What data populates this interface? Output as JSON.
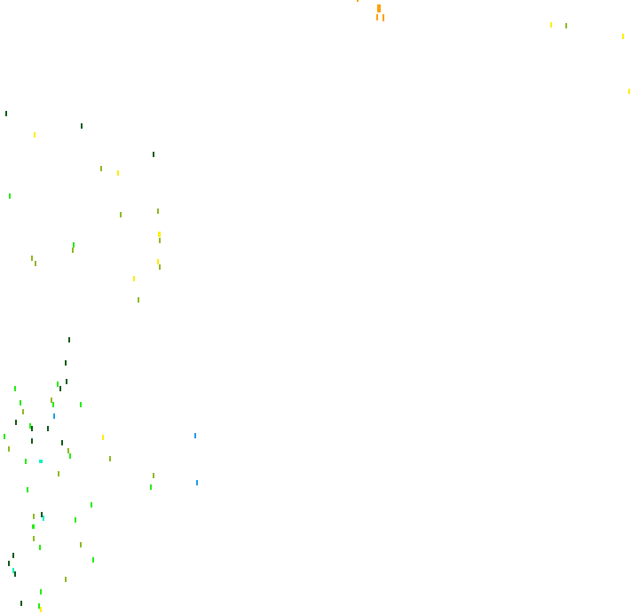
{
  "legend_colors": {
    "dark_green": "#0c5a14",
    "bright_green": "#22ee11",
    "olive": "#8cb822",
    "yellow": "#ffee00",
    "orange": "#ffa000",
    "cyan": "#11f0c0",
    "blue": "#1a9cf0"
  }
}
